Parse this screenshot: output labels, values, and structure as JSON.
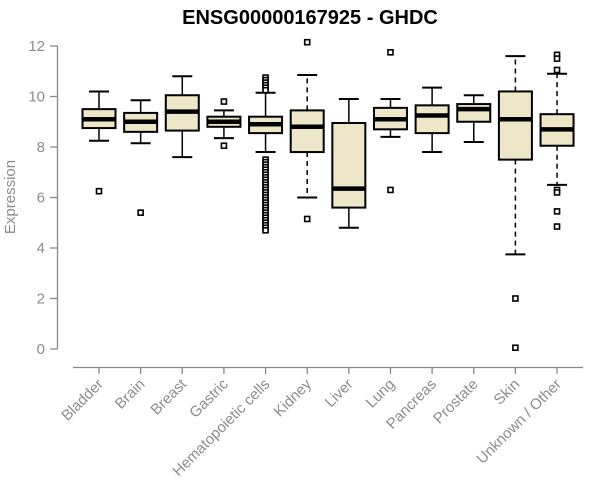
{
  "chart_data": {
    "type": "boxplot",
    "title": "ENSG00000167925 - GHDC",
    "xlabel": "",
    "ylabel": "Expression",
    "ylim": [
      0,
      12
    ],
    "yticks": [
      0,
      2,
      4,
      6,
      8,
      10,
      12
    ],
    "grid": false,
    "legend": false,
    "box_fill_color": "#EDE6C8",
    "box_stroke_color": "#000000",
    "axis_color": "#888888",
    "label_color": "#8c8c8c",
    "outlier_marker": "open-square",
    "categories": [
      "Bladder",
      "Brain",
      "Breast",
      "Gastric",
      "Hematopoietic cells",
      "Kidney",
      "Liver",
      "Lung",
      "Pancreas",
      "Prostate",
      "Skin",
      "Unknown / Other"
    ],
    "series": [
      {
        "category": "Bladder",
        "whisker_low": 8.25,
        "q1": 8.75,
        "median": 9.1,
        "q3": 9.5,
        "whisker_high": 10.2,
        "outliers": [
          6.25
        ]
      },
      {
        "category": "Brain",
        "whisker_low": 8.15,
        "q1": 8.6,
        "median": 9.0,
        "q3": 9.35,
        "whisker_high": 9.85,
        "outliers": [
          5.4
        ]
      },
      {
        "category": "Breast",
        "whisker_low": 7.6,
        "q1": 8.65,
        "median": 9.4,
        "q3": 10.05,
        "whisker_high": 10.8,
        "outliers": []
      },
      {
        "category": "Gastric",
        "whisker_low": 8.35,
        "q1": 8.8,
        "median": 9.0,
        "q3": 9.2,
        "whisker_high": 9.45,
        "outliers": [
          9.8,
          8.05
        ]
      },
      {
        "category": "Hematopoietic cells",
        "whisker_low": 7.8,
        "q1": 8.55,
        "median": 8.9,
        "q3": 9.2,
        "whisker_high": 10.15,
        "outliers": [
          10.75,
          10.65,
          10.55,
          10.45,
          10.35,
          10.25,
          7.5,
          7.4,
          7.3,
          7.2,
          7.1,
          7.0,
          6.9,
          6.8,
          6.7,
          6.6,
          6.5,
          6.4,
          6.3,
          6.2,
          6.1,
          6.0,
          5.9,
          5.8,
          5.7,
          5.6,
          5.5,
          5.4,
          5.3,
          5.2,
          5.1,
          5.0,
          4.9,
          4.8,
          4.7
        ]
      },
      {
        "category": "Kidney",
        "whisker_low": 6.0,
        "q1": 7.8,
        "median": 8.8,
        "q3": 9.45,
        "whisker_high": 10.85,
        "outliers": [
          12.15,
          5.15
        ]
      },
      {
        "category": "Liver",
        "whisker_low": 4.8,
        "q1": 5.6,
        "median": 6.35,
        "q3": 8.95,
        "whisker_high": 9.9,
        "outliers": []
      },
      {
        "category": "Lung",
        "whisker_low": 8.4,
        "q1": 8.7,
        "median": 9.1,
        "q3": 9.55,
        "whisker_high": 9.9,
        "outliers": [
          11.75,
          6.3
        ]
      },
      {
        "category": "Pancreas",
        "whisker_low": 7.8,
        "q1": 8.55,
        "median": 9.25,
        "q3": 9.65,
        "whisker_high": 10.35,
        "outliers": []
      },
      {
        "category": "Prostate",
        "whisker_low": 8.2,
        "q1": 9.0,
        "median": 9.5,
        "q3": 9.7,
        "whisker_high": 10.05,
        "outliers": []
      },
      {
        "category": "Skin",
        "whisker_low": 3.75,
        "q1": 7.5,
        "median": 9.1,
        "q3": 10.2,
        "whisker_high": 11.6,
        "outliers": [
          2.0,
          0.05
        ]
      },
      {
        "category": "Unknown / Other",
        "whisker_low": 6.5,
        "q1": 8.05,
        "median": 8.7,
        "q3": 9.3,
        "whisker_high": 10.9,
        "outliers": [
          11.65,
          11.5,
          11.05,
          6.3,
          6.2,
          5.45,
          4.85
        ]
      }
    ]
  }
}
